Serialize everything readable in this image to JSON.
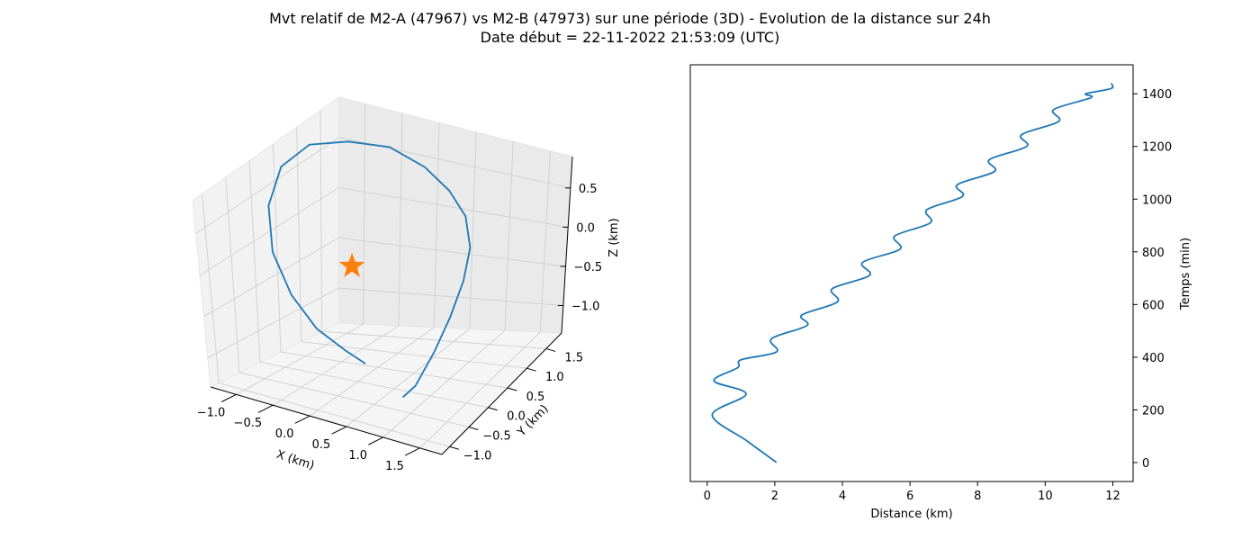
{
  "figure": {
    "title_line1": "Mvt relatif de M2-A (47967) vs M2-B (47973) sur une période (3D) - Evolution de la distance sur 24h",
    "title_line2": "Date début = 22-11-2022 21:53:09 (UTC)"
  },
  "colors": {
    "trajectory": "#1f77b4",
    "marker": "#ff7f0e",
    "pane": "#f2f2f2",
    "grid": "#cfcfcf"
  },
  "chart_data": [
    {
      "type": "line3d",
      "xlabel": "X (km)",
      "ylabel": "Y (km)",
      "zlabel": "Z (km)",
      "xticks": [
        "−1.0",
        "−0.5",
        "0.0",
        "0.5",
        "1.0",
        "1.5"
      ],
      "yticks": [
        "−1.0",
        "−0.5",
        "0.0",
        "0.5",
        "1.0",
        "1.5"
      ],
      "zticks": [
        "−1.0",
        "−0.5",
        "0.0",
        "0.5"
      ],
      "xlim": [
        -1.35,
        1.8
      ],
      "ylim": [
        -1.2,
        1.9
      ],
      "zlim": [
        -1.35,
        0.9
      ],
      "grid": true,
      "series": [
        {
          "points": [
            [
              1.15,
              -0.9,
              -0.95
            ],
            [
              1.25,
              -0.75,
              -0.85
            ],
            [
              1.3,
              -0.35,
              -0.6
            ],
            [
              1.3,
              0.05,
              -0.35
            ],
            [
              1.25,
              0.45,
              -0.1
            ],
            [
              1.1,
              0.85,
              0.1
            ],
            [
              0.85,
              1.15,
              0.3
            ],
            [
              0.5,
              1.35,
              0.45
            ],
            [
              0.1,
              1.45,
              0.6
            ],
            [
              -0.35,
              1.4,
              0.75
            ],
            [
              -0.75,
              1.15,
              0.82
            ],
            [
              -1.05,
              0.8,
              0.85
            ],
            [
              -1.15,
              0.35,
              0.75
            ],
            [
              -1.05,
              -0.1,
              0.5
            ],
            [
              -0.8,
              -0.45,
              0.15
            ],
            [
              -0.45,
              -0.65,
              -0.2
            ],
            [
              -0.1,
              -0.7,
              -0.5
            ],
            [
              0.25,
              -0.65,
              -0.7
            ],
            [
              0.45,
              -0.55,
              -0.85
            ]
          ]
        }
      ],
      "markers": [
        {
          "shape": "star",
          "point": [
            0.0,
            0.0,
            0.0
          ]
        }
      ]
    },
    {
      "type": "line",
      "xlabel": "Distance (km)",
      "ylabel": "Temps (min)",
      "xlim": [
        -0.5,
        12.6
      ],
      "ylim": [
        -72,
        1510
      ],
      "xticks": [
        0,
        2,
        4,
        6,
        8,
        10,
        12
      ],
      "yticks": [
        0,
        200,
        400,
        600,
        800,
        1000,
        1200,
        1400
      ],
      "yaxis_position": "right",
      "grid": false,
      "series": [
        {
          "x": [
            2.05,
            1.2,
            0.15,
            1.15,
            0.2,
            0.9,
            1.0,
            2.05,
            1.9,
            2.95,
            2.8,
            3.85,
            3.7,
            4.8,
            4.6,
            5.7,
            5.55,
            6.6,
            6.5,
            7.55,
            7.4,
            8.5,
            8.35,
            9.45,
            9.3,
            10.4,
            10.25,
            11.35,
            11.2,
            11.95,
            11.95
          ],
          "y": [
            0,
            80,
            180,
            260,
            310,
            360,
            390,
            420,
            470,
            520,
            560,
            610,
            660,
            710,
            760,
            810,
            860,
            910,
            960,
            1010,
            1055,
            1105,
            1150,
            1200,
            1245,
            1295,
            1340,
            1385,
            1400,
            1420,
            1440
          ]
        }
      ]
    }
  ]
}
